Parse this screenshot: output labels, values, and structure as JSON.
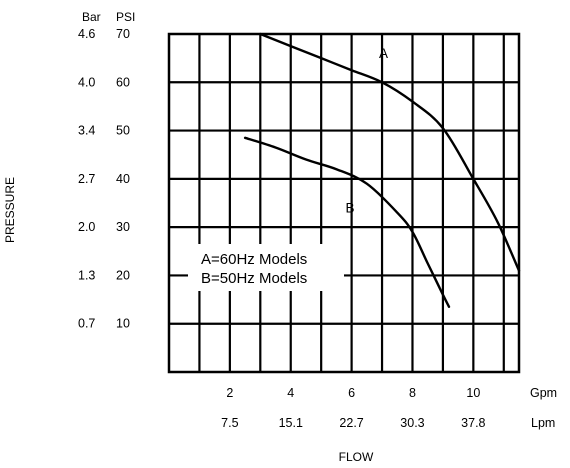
{
  "chart_data": {
    "type": "line",
    "ylabel": "PRESSURE",
    "xlabel": "FLOW",
    "y_unit_primary": "PSI",
    "y_unit_secondary": "Bar",
    "x_unit_primary": "Gpm",
    "x_unit_secondary": "Lpm",
    "xlim": [
      0,
      11.5
    ],
    "ylim": [
      0,
      70
    ],
    "x_ticks": [
      {
        "gpm": 2,
        "gpm_label": "2",
        "lpm_label": "7.5"
      },
      {
        "gpm": 4,
        "gpm_label": "4",
        "lpm_label": "15.1"
      },
      {
        "gpm": 6,
        "gpm_label": "6",
        "lpm_label": "22.7"
      },
      {
        "gpm": 8,
        "gpm_label": "8",
        "lpm_label": "30.3"
      },
      {
        "gpm": 10,
        "gpm_label": "10",
        "lpm_label": "37.8"
      }
    ],
    "y_ticks": [
      {
        "psi": 70,
        "psi_label": "70",
        "bar_label": "4.6"
      },
      {
        "psi": 60,
        "psi_label": "60",
        "bar_label": "4.0"
      },
      {
        "psi": 50,
        "psi_label": "50",
        "bar_label": "3.4"
      },
      {
        "psi": 40,
        "psi_label": "40",
        "bar_label": "2.7"
      },
      {
        "psi": 30,
        "psi_label": "30",
        "bar_label": "2.0"
      },
      {
        "psi": 20,
        "psi_label": "20",
        "bar_label": "1.3"
      },
      {
        "psi": 10,
        "psi_label": "10",
        "bar_label": "0.7"
      }
    ],
    "series": [
      {
        "name": "A",
        "x": [
          3.0,
          4.0,
          5.0,
          6.0,
          7.0,
          8.0,
          9.0,
          10.0,
          10.8,
          11.5
        ],
        "y": [
          70,
          67.5,
          65,
          62.5,
          60,
          56,
          50.5,
          40,
          31,
          21
        ]
      },
      {
        "name": "B",
        "x": [
          2.5,
          3.5,
          4.5,
          5.5,
          6.5,
          7.5,
          8.0,
          8.5,
          9.0,
          9.2
        ],
        "y": [
          48.5,
          46.5,
          44,
          42,
          39,
          33,
          29,
          22.5,
          16,
          13.5
        ]
      }
    ],
    "legend_lines": [
      "A=60Hz Models",
      "B=50Hz Models"
    ],
    "grid": true
  }
}
